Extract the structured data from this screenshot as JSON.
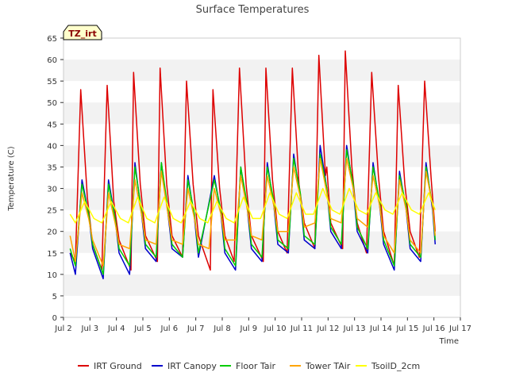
{
  "chart_data": {
    "type": "line",
    "title": "Surface Temperatures",
    "xlabel": "Time",
    "ylabel": "Temperature (C)",
    "badge": "TZ_irt",
    "xlim": [
      2.0,
      17.0
    ],
    "ylim": [
      0,
      65
    ],
    "x_ticks": [
      {
        "v": 2,
        "label": "Jul 2"
      },
      {
        "v": 3,
        "label": "Jul 3"
      },
      {
        "v": 4,
        "label": "Jul 4"
      },
      {
        "v": 5,
        "label": "Jul 5"
      },
      {
        "v": 6,
        "label": "Jul 6"
      },
      {
        "v": 7,
        "label": "Jul 7"
      },
      {
        "v": 8,
        "label": "Jul 8"
      },
      {
        "v": 9,
        "label": "Jul 9"
      },
      {
        "v": 10,
        "label": "Jul 10"
      },
      {
        "v": 11,
        "label": "Jul 11"
      },
      {
        "v": 12,
        "label": "Jul 12"
      },
      {
        "v": 13,
        "label": "Jul 13"
      },
      {
        "v": 14,
        "label": "Jul 14"
      },
      {
        "v": 15,
        "label": "Jul 15"
      },
      {
        "v": 16,
        "label": "Jul 16"
      },
      {
        "v": 17,
        "label": "Jul 17"
      }
    ],
    "y_ticks": [
      0,
      5,
      10,
      15,
      20,
      25,
      30,
      35,
      40,
      45,
      50,
      55,
      60,
      65
    ],
    "grid": "horizontal bands",
    "legend_position": "bottom",
    "series": [
      {
        "name": "IRT Ground",
        "color": "#dd0000",
        "x": [
          2.25,
          2.45,
          2.65,
          2.9,
          3.1,
          3.45,
          3.65,
          3.9,
          4.1,
          4.55,
          4.65,
          4.9,
          5.1,
          5.55,
          5.65,
          5.9,
          6.1,
          6.5,
          6.65,
          6.9,
          7.1,
          7.55,
          7.65,
          7.9,
          8.1,
          8.45,
          8.65,
          8.9,
          9.1,
          9.55,
          9.65,
          9.9,
          10.1,
          10.45,
          10.65,
          10.9,
          11.1,
          11.5,
          11.65,
          11.9,
          11.95,
          12.1,
          12.55,
          12.65,
          12.9,
          13.1,
          13.45,
          13.65,
          13.9,
          14.1,
          14.5,
          14.65,
          14.9,
          15.1,
          15.45,
          15.65,
          15.9,
          16.05
        ],
        "y": [
          15,
          13,
          53,
          28,
          17,
          11,
          54,
          27,
          18,
          11,
          57,
          31,
          19,
          13,
          58,
          31,
          19,
          14,
          55,
          31,
          19,
          11,
          53,
          30,
          19,
          13,
          58,
          31,
          19,
          13,
          58,
          32,
          20,
          15,
          58,
          31,
          22,
          16,
          61,
          33,
          35,
          22,
          16,
          62,
          35,
          22,
          15,
          57,
          33,
          20,
          12,
          54,
          31,
          20,
          14,
          55,
          32,
          20
        ]
      },
      {
        "name": "IRT Canopy",
        "color": "#0000cc",
        "x": [
          2.25,
          2.45,
          2.7,
          2.95,
          3.1,
          3.5,
          3.7,
          3.95,
          4.1,
          4.5,
          4.7,
          4.95,
          5.1,
          5.5,
          5.7,
          5.95,
          6.1,
          6.5,
          6.7,
          6.95,
          7.1,
          7.7,
          7.95,
          8.1,
          8.5,
          8.7,
          8.95,
          9.1,
          9.5,
          9.7,
          9.95,
          10.1,
          10.5,
          10.7,
          10.95,
          11.1,
          11.5,
          11.7,
          11.95,
          12.1,
          12.5,
          12.7,
          12.95,
          13.1,
          13.5,
          13.7,
          13.95,
          14.1,
          14.5,
          14.7,
          14.95,
          15.1,
          15.5,
          15.7,
          15.95,
          16.05
        ],
        "y": [
          15,
          10,
          32,
          24,
          16,
          9,
          32,
          23,
          15,
          10,
          36,
          24,
          16,
          13,
          36,
          24,
          16,
          14,
          33,
          23,
          14,
          33,
          24,
          15,
          11,
          35,
          25,
          16,
          13,
          36,
          26,
          17,
          15,
          38,
          28,
          18,
          16,
          40,
          30,
          20,
          16,
          40,
          30,
          20,
          15,
          36,
          26,
          17,
          11,
          34,
          25,
          16,
          13,
          36,
          25,
          17
        ]
      },
      {
        "name": "Floor Tair",
        "color": "#00cc00",
        "x": [
          2.25,
          2.45,
          2.7,
          2.95,
          3.1,
          3.5,
          3.7,
          3.95,
          4.1,
          4.5,
          4.7,
          4.95,
          5.1,
          5.5,
          5.7,
          5.95,
          6.1,
          6.5,
          6.7,
          6.95,
          7.1,
          7.7,
          7.95,
          8.1,
          8.5,
          8.7,
          8.95,
          9.1,
          9.5,
          9.7,
          9.95,
          10.1,
          10.5,
          10.7,
          10.95,
          11.1,
          11.5,
          11.7,
          11.95,
          12.1,
          12.5,
          12.7,
          12.95,
          13.1,
          13.5,
          13.7,
          13.95,
          14.1,
          14.5,
          14.7,
          14.95,
          15.1,
          15.5,
          15.7,
          15.95,
          16.05
        ],
        "y": [
          16,
          12,
          31,
          24,
          17,
          10,
          31,
          23,
          16,
          12,
          35,
          25,
          17,
          14,
          36,
          25,
          17,
          14,
          32,
          24,
          15,
          32,
          25,
          16,
          12,
          35,
          26,
          17,
          14,
          35,
          27,
          18,
          16,
          37,
          29,
          19,
          17,
          38,
          30,
          21,
          17,
          39,
          31,
          21,
          16,
          35,
          27,
          18,
          12,
          33,
          26,
          17,
          14,
          35,
          26,
          18
        ]
      },
      {
        "name": "Tower TAir",
        "color": "#ffa500",
        "x": [
          2.25,
          2.45,
          2.7,
          2.95,
          3.1,
          3.5,
          3.7,
          3.95,
          4.1,
          4.5,
          4.7,
          4.95,
          5.1,
          5.5,
          5.7,
          5.95,
          6.1,
          6.5,
          6.7,
          6.95,
          7.1,
          7.5,
          7.7,
          7.95,
          8.1,
          8.5,
          8.7,
          8.95,
          9.1,
          9.5,
          9.7,
          9.95,
          10.1,
          10.5,
          10.7,
          10.95,
          11.1,
          11.5,
          11.7,
          11.95,
          12.1,
          12.5,
          12.7,
          12.95,
          13.1,
          13.5,
          13.7,
          13.95,
          14.1,
          14.5,
          14.7,
          14.95,
          15.1,
          15.5,
          15.7,
          15.95,
          16.05
        ],
        "y": [
          19,
          13,
          29,
          23,
          18,
          12,
          29,
          22,
          17,
          16,
          32,
          24,
          18,
          17,
          34,
          24,
          18,
          17,
          30,
          23,
          17,
          16,
          30,
          24,
          18,
          18,
          33,
          25,
          19,
          18,
          33,
          26,
          20,
          20,
          35,
          28,
          21,
          22,
          37,
          29,
          23,
          22,
          37,
          30,
          23,
          21,
          33,
          26,
          19,
          15,
          32,
          25,
          18,
          15,
          34,
          26,
          19
        ]
      },
      {
        "name": "TsoilD_2cm",
        "color": "#ffff00",
        "x": [
          2.25,
          2.45,
          2.8,
          3.15,
          3.45,
          3.8,
          4.15,
          4.45,
          4.8,
          5.15,
          5.45,
          5.8,
          6.15,
          6.45,
          6.8,
          7.15,
          7.45,
          7.8,
          8.15,
          8.45,
          8.8,
          9.15,
          9.45,
          9.8,
          10.15,
          10.45,
          10.8,
          11.15,
          11.45,
          11.8,
          12.15,
          12.45,
          12.8,
          13.15,
          13.45,
          13.8,
          14.15,
          14.45,
          14.8,
          15.15,
          15.45,
          15.8,
          16.05
        ],
        "y": [
          24,
          22,
          27,
          23,
          22,
          27,
          23,
          22,
          28,
          23,
          22,
          28,
          23,
          22,
          27,
          23,
          22,
          27,
          23,
          22,
          28,
          23,
          23,
          29,
          24,
          23,
          29,
          24,
          24,
          30,
          25,
          24,
          30,
          25,
          24,
          29,
          25,
          24,
          29,
          25,
          24,
          29,
          25
        ]
      }
    ]
  }
}
